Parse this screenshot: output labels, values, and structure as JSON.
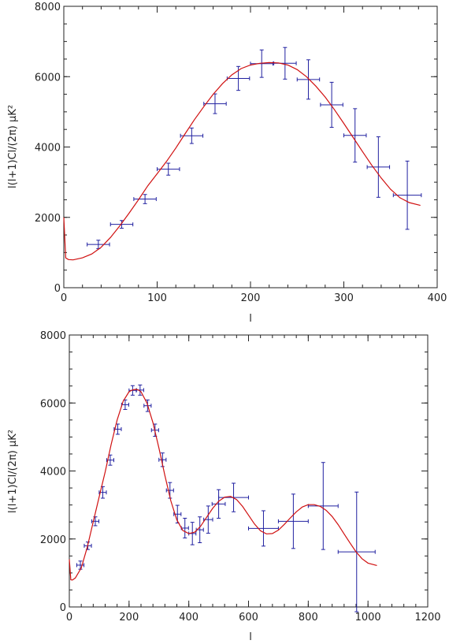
{
  "chart_data": [
    {
      "type": "scatter",
      "xlabel": "l",
      "ylabel": "l(l+1)Cl/(2π) μK²",
      "xlim": [
        0,
        400
      ],
      "ylim": [
        0,
        8000
      ],
      "xticks": [
        0,
        100,
        200,
        300,
        400
      ],
      "yticks": [
        0,
        2000,
        4000,
        6000,
        8000
      ],
      "grid": false,
      "series": [
        {
          "kind": "errorbar",
          "color": "#2020a0",
          "points": [
            {
              "x": 37,
              "y": 1230,
              "xerr": 12,
              "yerr": 120
            },
            {
              "x": 62,
              "y": 1800,
              "xerr": 12,
              "yerr": 110
            },
            {
              "x": 87,
              "y": 2520,
              "xerr": 12,
              "yerr": 130
            },
            {
              "x": 112,
              "y": 3370,
              "xerr": 12,
              "yerr": 170
            },
            {
              "x": 137,
              "y": 4320,
              "xerr": 12,
              "yerr": 220
            },
            {
              "x": 162,
              "y": 5230,
              "xerr": 12,
              "yerr": 280
            },
            {
              "x": 187,
              "y": 5950,
              "xerr": 12,
              "yerr": 340
            },
            {
              "x": 212,
              "y": 6370,
              "xerr": 12,
              "yerr": 390
            },
            {
              "x": 237,
              "y": 6380,
              "xerr": 12,
              "yerr": 450
            },
            {
              "x": 262,
              "y": 5920,
              "xerr": 12,
              "yerr": 560
            },
            {
              "x": 287,
              "y": 5200,
              "xerr": 12,
              "yerr": 640
            },
            {
              "x": 312,
              "y": 4330,
              "xerr": 12,
              "yerr": 760
            },
            {
              "x": 337,
              "y": 3430,
              "xerr": 12,
              "yerr": 860
            },
            {
              "x": 368,
              "y": 2630,
              "xerr": 15,
              "yerr": 970
            }
          ]
        },
        {
          "kind": "line",
          "color": "#d01010",
          "x": [
            0,
            2,
            5,
            10,
            20,
            30,
            40,
            50,
            60,
            70,
            80,
            90,
            100,
            110,
            120,
            130,
            140,
            150,
            160,
            170,
            180,
            190,
            200,
            210,
            220,
            230,
            240,
            250,
            260,
            270,
            280,
            290,
            300,
            310,
            320,
            330,
            340,
            350,
            360,
            370,
            382
          ],
          "y": [
            2000,
            850,
            800,
            790,
            850,
            960,
            1150,
            1430,
            1760,
            2120,
            2500,
            2900,
            3240,
            3590,
            3970,
            4380,
            4780,
            5150,
            5500,
            5800,
            6050,
            6230,
            6330,
            6380,
            6400,
            6390,
            6330,
            6200,
            6000,
            5730,
            5420,
            5060,
            4670,
            4270,
            3870,
            3480,
            3120,
            2800,
            2560,
            2420,
            2340
          ]
        }
      ]
    },
    {
      "type": "scatter",
      "xlabel": "l",
      "ylabel": "l(l+1)Cl/(2π) μK²",
      "xlim": [
        0,
        1200
      ],
      "ylim": [
        0,
        8000
      ],
      "xticks": [
        0,
        200,
        400,
        600,
        800,
        1000,
        1200
      ],
      "yticks": [
        0,
        2000,
        4000,
        6000,
        8000
      ],
      "grid": false,
      "series": [
        {
          "kind": "errorbar",
          "color": "#2020a0",
          "points": [
            {
              "x": 37,
              "y": 1230,
              "xerr": 12,
              "yerr": 120
            },
            {
              "x": 62,
              "y": 1800,
              "xerr": 12,
              "yerr": 110
            },
            {
              "x": 87,
              "y": 2520,
              "xerr": 12,
              "yerr": 130
            },
            {
              "x": 112,
              "y": 3370,
              "xerr": 12,
              "yerr": 170
            },
            {
              "x": 137,
              "y": 4320,
              "xerr": 12,
              "yerr": 150
            },
            {
              "x": 162,
              "y": 5230,
              "xerr": 12,
              "yerr": 150
            },
            {
              "x": 187,
              "y": 5950,
              "xerr": 12,
              "yerr": 140
            },
            {
              "x": 212,
              "y": 6370,
              "xerr": 12,
              "yerr": 140
            },
            {
              "x": 237,
              "y": 6380,
              "xerr": 12,
              "yerr": 150
            },
            {
              "x": 262,
              "y": 5920,
              "xerr": 12,
              "yerr": 170
            },
            {
              "x": 287,
              "y": 5200,
              "xerr": 12,
              "yerr": 180
            },
            {
              "x": 312,
              "y": 4330,
              "xerr": 12,
              "yerr": 200
            },
            {
              "x": 337,
              "y": 3430,
              "xerr": 12,
              "yerr": 230
            },
            {
              "x": 362,
              "y": 2730,
              "xerr": 12,
              "yerr": 260
            },
            {
              "x": 387,
              "y": 2320,
              "xerr": 12,
              "yerr": 290
            },
            {
              "x": 412,
              "y": 2160,
              "xerr": 12,
              "yerr": 330
            },
            {
              "x": 437,
              "y": 2270,
              "xerr": 12,
              "yerr": 380
            },
            {
              "x": 465,
              "y": 2570,
              "xerr": 15,
              "yerr": 400
            },
            {
              "x": 500,
              "y": 3030,
              "xerr": 22,
              "yerr": 420
            },
            {
              "x": 550,
              "y": 3220,
              "xerr": 50,
              "yerr": 420
            },
            {
              "x": 650,
              "y": 2310,
              "xerr": 50,
              "yerr": 520
            },
            {
              "x": 750,
              "y": 2520,
              "xerr": 50,
              "yerr": 800
            },
            {
              "x": 850,
              "y": 2970,
              "xerr": 50,
              "yerr": 1280
            },
            {
              "x": 962,
              "y": 1620,
              "xerr": 62,
              "yerr": 1760
            }
          ]
        },
        {
          "kind": "line",
          "color": "#d01010",
          "x": [
            0,
            5,
            10,
            20,
            40,
            60,
            80,
            100,
            120,
            140,
            160,
            180,
            200,
            210,
            220,
            230,
            240,
            260,
            280,
            300,
            320,
            340,
            360,
            380,
            400,
            420,
            440,
            460,
            480,
            500,
            520,
            540,
            560,
            580,
            600,
            620,
            640,
            660,
            680,
            700,
            720,
            740,
            760,
            780,
            800,
            820,
            840,
            860,
            880,
            900,
            920,
            940,
            960,
            980,
            1000,
            1030
          ],
          "y": [
            1400,
            800,
            790,
            850,
            1150,
            1760,
            2500,
            3240,
            3970,
            4780,
            5500,
            6050,
            6330,
            6380,
            6400,
            6390,
            6330,
            6000,
            5420,
            4670,
            3870,
            3120,
            2560,
            2250,
            2160,
            2200,
            2380,
            2640,
            2900,
            3110,
            3230,
            3250,
            3160,
            2960,
            2700,
            2440,
            2240,
            2150,
            2160,
            2260,
            2430,
            2620,
            2800,
            2940,
            3010,
            3010,
            2960,
            2840,
            2660,
            2420,
            2150,
            1880,
            1620,
            1420,
            1290,
            1220
          ]
        }
      ]
    }
  ]
}
